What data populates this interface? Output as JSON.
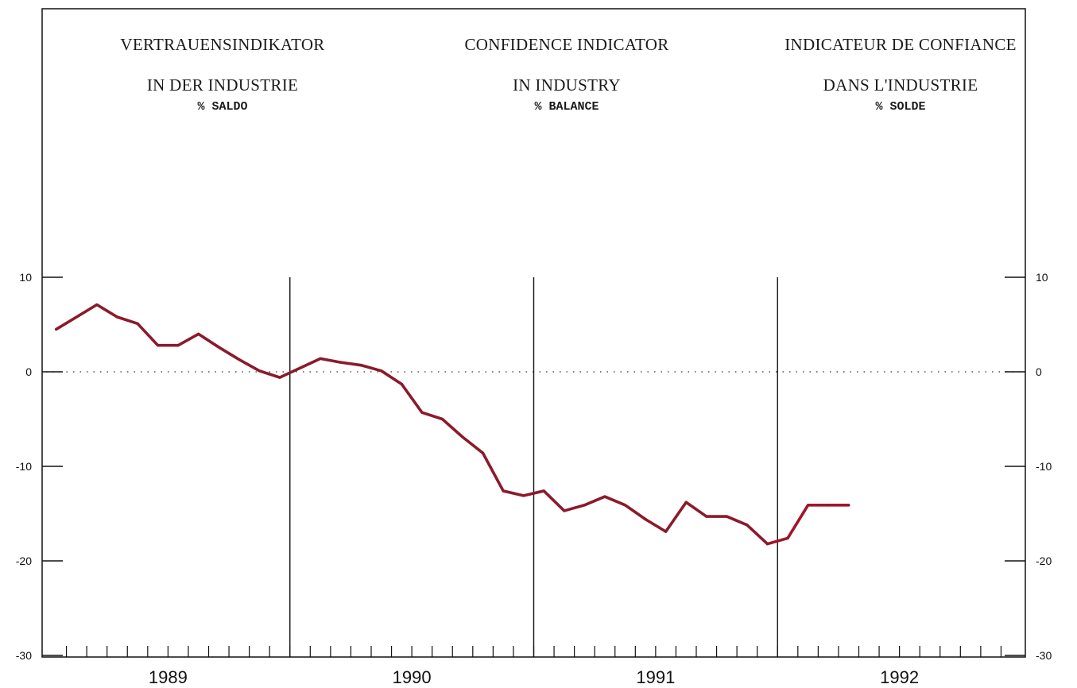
{
  "headers": [
    {
      "line1": "VERTRAUENSINDIKATOR",
      "line2": "IN DER INDUSTRIE",
      "line3": "% SALDO"
    },
    {
      "line1": "CONFIDENCE INDICATOR",
      "line2": "IN INDUSTRY",
      "line3": "% BALANCE"
    },
    {
      "line1": "INDICATEUR DE CONFIANCE",
      "line2": "DANS L'INDUSTRIE",
      "line3": "% SOLDE"
    }
  ],
  "colors": {
    "series_line": "#8b1a2b",
    "series_line_recent": "#a3142a",
    "axis": "#111111",
    "zero_line": "#333333"
  },
  "chart_data": {
    "type": "line",
    "title": "",
    "xlabel": "",
    "ylabel": "",
    "x_start": "1989-01",
    "x_end": "1992-12",
    "x_tick_labels": [
      "1989",
      "1990",
      "1991",
      "1992"
    ],
    "ylim": [
      -30,
      12
    ],
    "y_ticks": [
      10,
      0,
      -10,
      -20,
      -30
    ],
    "y_tick_labels": [
      "10",
      "0",
      "-10",
      "-20",
      "-30"
    ],
    "zero_line": "dotted",
    "grid": false,
    "year_dividers": [
      "1990",
      "1991",
      "1992"
    ],
    "series": [
      {
        "x": [
          "1989-01",
          "1989-02",
          "1989-03",
          "1989-04",
          "1989-05",
          "1989-06",
          "1989-07",
          "1989-08",
          "1989-09",
          "1989-10",
          "1989-11",
          "1989-12",
          "1990-01",
          "1990-02",
          "1990-03",
          "1990-04",
          "1990-05",
          "1990-06",
          "1990-07",
          "1990-08",
          "1990-09",
          "1990-10",
          "1990-11",
          "1990-12",
          "1991-01",
          "1991-02",
          "1991-03",
          "1991-04",
          "1991-05",
          "1991-06",
          "1991-07",
          "1991-08",
          "1991-09",
          "1991-10",
          "1991-11",
          "1991-12",
          "1992-01",
          "1992-02",
          "1992-03",
          "1992-04"
        ],
        "y": [
          4.5,
          5.8,
          7.1,
          5.8,
          5.1,
          2.8,
          2.8,
          4.0,
          2.6,
          1.3,
          0.1,
          -0.6,
          0.4,
          1.4,
          1.0,
          0.7,
          0.1,
          -1.3,
          -4.3,
          -5.0,
          -6.9,
          -8.6,
          -12.6,
          -13.1,
          -12.6,
          -14.7,
          -14.1,
          -13.2,
          -14.1,
          -15.6,
          -16.9,
          -13.8,
          -15.3,
          -15.3,
          -16.2,
          -18.2,
          -17.6,
          -14.1,
          -14.1,
          -14.1
        ]
      }
    ]
  }
}
